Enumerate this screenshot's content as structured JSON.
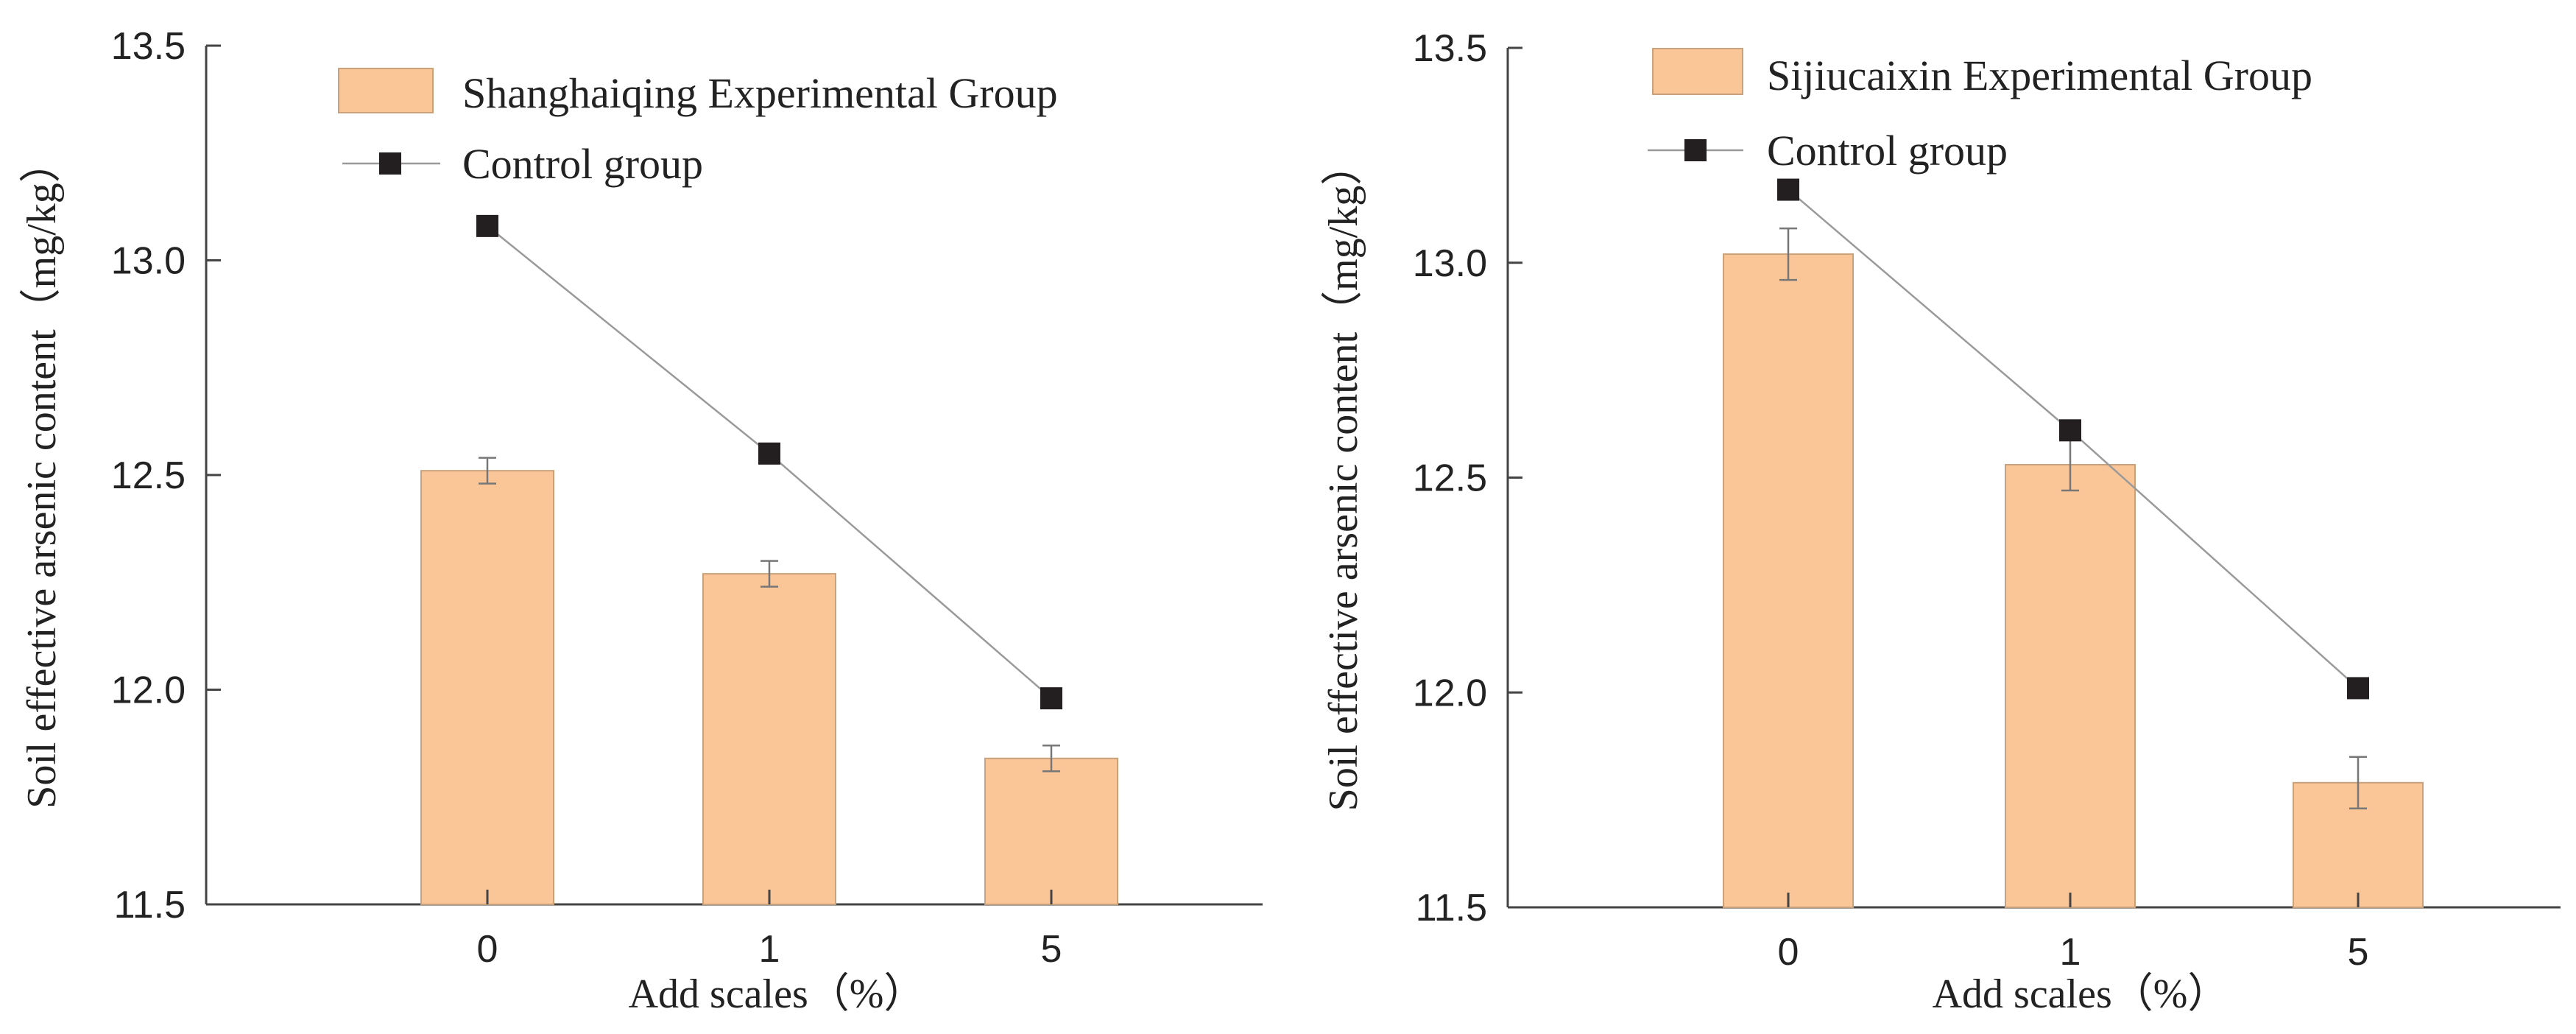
{
  "chart_data": [
    {
      "type": "bar",
      "categories": [
        "0",
        "1",
        "5"
      ],
      "series": [
        {
          "name": "Shanghaiqing Experimental Group",
          "kind": "bar",
          "values": [
            12.51,
            12.27,
            11.84
          ],
          "errors": [
            0.03,
            0.03,
            0.03
          ]
        },
        {
          "name": "Control group",
          "kind": "line",
          "values": [
            13.08,
            12.55,
            11.98
          ]
        }
      ],
      "xlabel": "Add scales（%）",
      "ylabel": "Soil effective arsenic content（mg/kg）",
      "ylim": [
        11.5,
        13.5
      ],
      "yticks": [
        "11.5",
        "12.0",
        "12.5",
        "13.0",
        "13.5"
      ],
      "legend": "top"
    },
    {
      "type": "bar",
      "categories": [
        "0",
        "1",
        "5"
      ],
      "series": [
        {
          "name": "Sijiucaixin Experimental Group",
          "kind": "bar",
          "values": [
            13.02,
            12.53,
            11.79
          ],
          "errors": [
            0.06,
            0.06,
            0.06
          ]
        },
        {
          "name": "Control group",
          "kind": "line",
          "values": [
            13.17,
            12.61,
            12.01
          ]
        }
      ],
      "xlabel": "Add scales（%）",
      "ylabel": "Soil effective arsenic content（mg/kg）",
      "ylim": [
        11.5,
        13.5
      ],
      "yticks": [
        "11.5",
        "12.0",
        "12.5",
        "13.0",
        "13.5"
      ],
      "legend": "top"
    }
  ],
  "colors": {
    "bar_fill": "#fbc697",
    "bar_edge": "#c9a27c",
    "marker": "#231f20",
    "line": "#9a9a9a"
  }
}
